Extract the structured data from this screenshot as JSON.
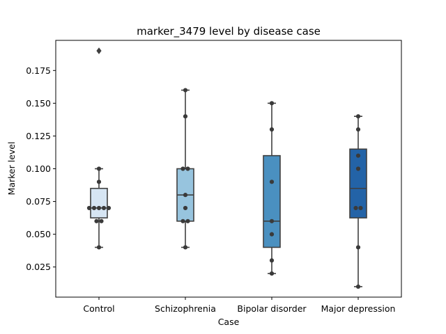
{
  "chart_data": {
    "type": "box",
    "title": "marker_3479 level by disease case",
    "xlabel": "Case",
    "ylabel": "Marker level",
    "ylim": [
      0.002,
      0.198
    ],
    "yticks": [
      "0.025",
      "0.050",
      "0.075",
      "0.100",
      "0.125",
      "0.150",
      "0.175"
    ],
    "categories": [
      "Control",
      "Schizophrenia",
      "Bipolar disorder",
      "Major depression"
    ],
    "colors": [
      "#d6e5f3",
      "#97c4de",
      "#4a90c0",
      "#2363a7"
    ],
    "boxes": [
      {
        "q1": 0.0625,
        "median": 0.07,
        "q3": 0.085,
        "whisker_low": 0.04,
        "whisker_high": 0.1,
        "outliers": [
          0.19
        ],
        "points": [
          0.04,
          0.06,
          0.06,
          0.07,
          0.07,
          0.07,
          0.07,
          0.07,
          0.09,
          0.1
        ]
      },
      {
        "q1": 0.06,
        "median": 0.08,
        "q3": 0.1,
        "whisker_low": 0.04,
        "whisker_high": 0.16,
        "outliers": [],
        "points": [
          0.04,
          0.06,
          0.06,
          0.07,
          0.08,
          0.1,
          0.1,
          0.14,
          0.16
        ]
      },
      {
        "q1": 0.04,
        "median": 0.06,
        "q3": 0.11,
        "whisker_low": 0.02,
        "whisker_high": 0.15,
        "outliers": [],
        "points": [
          0.02,
          0.03,
          0.05,
          0.06,
          0.09,
          0.13,
          0.15
        ]
      },
      {
        "q1": 0.0625,
        "median": 0.085,
        "q3": 0.115,
        "whisker_low": 0.01,
        "whisker_high": 0.14,
        "outliers": [],
        "points": [
          0.01,
          0.04,
          0.07,
          0.07,
          0.1,
          0.11,
          0.13,
          0.14
        ]
      }
    ],
    "grid": false,
    "legend": "none"
  }
}
